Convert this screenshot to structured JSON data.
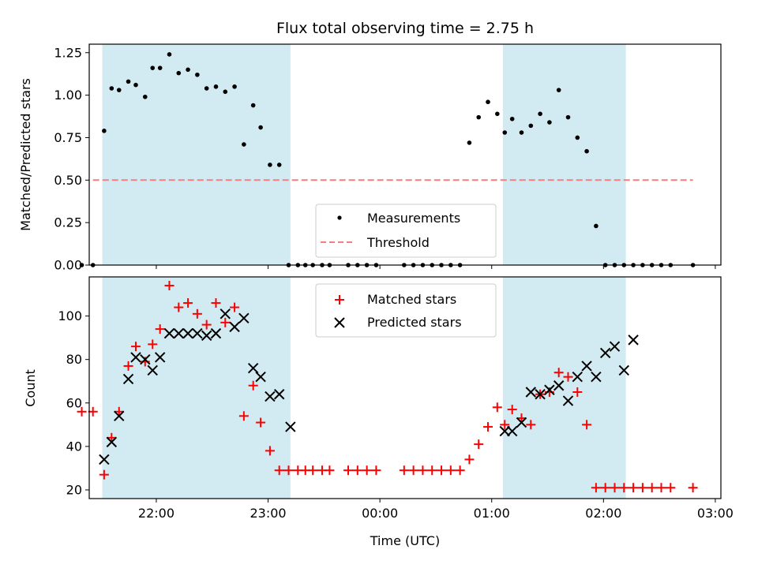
{
  "chart_data": [
    {
      "type": "scatter",
      "title": "Flux total observing time = 2.75 h",
      "ylabel": "Matched/Predicted stars",
      "xlabel": "",
      "xlim": [
        "21:24",
        "03:03"
      ],
      "ylim": [
        0.0,
        1.3
      ],
      "xticks": [
        "22:00",
        "23:00",
        "00:00",
        "01:00",
        "02:00",
        "03:00"
      ],
      "xtick_labels_shown": false,
      "yticks": [
        0.0,
        0.25,
        0.5,
        0.75,
        1.0,
        1.25
      ],
      "ytick_labels": [
        "0.00",
        "0.25",
        "0.50",
        "0.75",
        "1.00",
        "1.25"
      ],
      "grid": false,
      "legend": "lower-center",
      "shaded_intervals": [
        [
          "21:31",
          "23:12"
        ],
        [
          "01:06",
          "02:12"
        ]
      ],
      "shade_color": "#add8e6",
      "series": [
        {
          "name": "Measurements",
          "marker": "dot",
          "color": "#000000",
          "x": [
            "21:26",
            "21:32",
            "21:36",
            "21:40",
            "21:45",
            "21:49",
            "21:54",
            "21:58",
            "22:02",
            "22:07",
            "22:12",
            "22:17",
            "22:22",
            "22:27",
            "22:32",
            "22:37",
            "22:42",
            "22:47",
            "22:52",
            "22:56",
            "23:01",
            "23:06",
            "23:11",
            "23:16",
            "23:20",
            "23:24",
            "23:29",
            "23:33",
            "23:43",
            "23:48",
            "23:53",
            "23:58",
            "00:13",
            "00:18",
            "00:23",
            "00:28",
            "00:33",
            "00:38",
            "00:43",
            "00:48",
            "00:53",
            "00:58",
            "01:03",
            "01:07",
            "01:11",
            "01:16",
            "01:21",
            "01:26",
            "01:31",
            "01:36",
            "01:41",
            "01:46",
            "01:51",
            "01:56",
            "02:01",
            "02:06",
            "02:11",
            "02:16",
            "02:21",
            "02:26",
            "02:31",
            "02:36",
            "02:48"
          ],
          "y": [
            0.0,
            0.79,
            1.04,
            1.03,
            1.08,
            1.06,
            0.99,
            1.16,
            1.16,
            1.24,
            1.13,
            1.15,
            1.12,
            1.04,
            1.05,
            1.02,
            1.05,
            0.71,
            0.94,
            0.81,
            0.59,
            0.59,
            0.0,
            0.0,
            0.0,
            0.0,
            0.0,
            0.0,
            0.0,
            0.0,
            0.0,
            0.0,
            0.0,
            0.0,
            0.0,
            0.0,
            0.0,
            0.0,
            0.0,
            0.72,
            0.87,
            0.96,
            0.89,
            0.78,
            0.86,
            0.78,
            0.82,
            0.89,
            0.84,
            1.03,
            0.87,
            0.75,
            0.67,
            0.23,
            0.0,
            0.0,
            0.0,
            0.0,
            0.0,
            0.0,
            0.0,
            0.0,
            0.0
          ],
          "extra_points": {
            "x": [
              "21:20"
            ],
            "y": [
              0.0
            ]
          }
        },
        {
          "name": "Threshold",
          "marker": "dashed-line",
          "color": "#f08080",
          "x": [
            "21:26",
            "02:48"
          ],
          "y": [
            0.5,
            0.5
          ]
        }
      ]
    },
    {
      "type": "scatter",
      "title": "",
      "ylabel": "Count",
      "xlabel": "Time (UTC)",
      "xlim": [
        "21:24",
        "03:03"
      ],
      "ylim": [
        16,
        118
      ],
      "xticks": [
        "22:00",
        "23:00",
        "00:00",
        "01:00",
        "02:00",
        "03:00"
      ],
      "xtick_labels": [
        "22:00",
        "23:00",
        "00:00",
        "01:00",
        "02:00",
        "03:00"
      ],
      "yticks": [
        20,
        40,
        60,
        80,
        100
      ],
      "ytick_labels": [
        "20",
        "40",
        "60",
        "80",
        "100"
      ],
      "grid": false,
      "legend": "top-center",
      "shaded_intervals": [
        [
          "21:31",
          "23:12"
        ],
        [
          "01:06",
          "02:12"
        ]
      ],
      "shade_color": "#add8e6",
      "series": [
        {
          "name": "Matched stars",
          "marker": "plus",
          "color": "#ff0000",
          "x": [
            "21:26",
            "21:32",
            "21:36",
            "21:40",
            "21:45",
            "21:49",
            "21:54",
            "21:58",
            "22:02",
            "22:07",
            "22:12",
            "22:17",
            "22:22",
            "22:27",
            "22:32",
            "22:37",
            "22:42",
            "22:47",
            "22:52",
            "22:56",
            "23:01",
            "23:06",
            "23:11",
            "23:16",
            "23:20",
            "23:24",
            "23:29",
            "23:33",
            "23:43",
            "23:48",
            "23:53",
            "23:58",
            "00:13",
            "00:18",
            "00:23",
            "00:28",
            "00:33",
            "00:38",
            "00:43",
            "00:48",
            "00:53",
            "00:58",
            "01:03",
            "01:07",
            "01:11",
            "01:16",
            "01:21",
            "01:26",
            "01:31",
            "01:36",
            "01:41",
            "01:46",
            "01:51",
            "01:56",
            "02:01",
            "02:06",
            "02:11",
            "02:16",
            "02:21",
            "02:26",
            "02:31",
            "02:36",
            "02:48"
          ],
          "y": [
            56,
            27,
            44,
            56,
            77,
            86,
            79,
            87,
            94,
            114,
            104,
            106,
            101,
            96,
            106,
            97,
            104,
            54,
            68,
            51,
            38,
            29,
            29,
            29,
            29,
            29,
            29,
            29,
            29,
            29,
            29,
            29,
            29,
            29,
            29,
            29,
            29,
            29,
            29,
            34,
            41,
            49,
            58,
            50,
            57,
            53,
            50,
            64,
            65,
            74,
            72,
            65,
            50,
            21,
            21,
            21,
            21,
            21,
            21,
            21,
            21,
            21,
            21
          ],
          "extra_points": {
            "x": [
              "21:20"
            ],
            "y": [
              56
            ]
          }
        },
        {
          "name": "Predicted stars",
          "marker": "x",
          "color": "#000000",
          "x": [
            "21:32",
            "21:36",
            "21:40",
            "21:45",
            "21:49",
            "21:54",
            "21:58",
            "22:02",
            "22:07",
            "22:12",
            "22:17",
            "22:22",
            "22:27",
            "22:32",
            "22:37",
            "22:42",
            "22:47",
            "22:52",
            "22:56",
            "23:01",
            "23:06",
            "01:07",
            "01:11",
            "01:16",
            "01:21",
            "01:26",
            "01:31",
            "01:36",
            "01:41",
            "01:46",
            "01:51",
            "01:56",
            "02:01",
            "02:06",
            "02:11",
            "02:16"
          ],
          "y": [
            34,
            42,
            54,
            71,
            81,
            80,
            75,
            81,
            92,
            92,
            92,
            92,
            91,
            92,
            101,
            95,
            99,
            76,
            72,
            63,
            64,
            47,
            47,
            51,
            65,
            64,
            66,
            68,
            61,
            72,
            77,
            72,
            83,
            86,
            75,
            89
          ]
        }
      ],
      "extra_predicted": {
        "x": [
          "23:12"
        ],
        "y": [
          49
        ]
      }
    }
  ]
}
